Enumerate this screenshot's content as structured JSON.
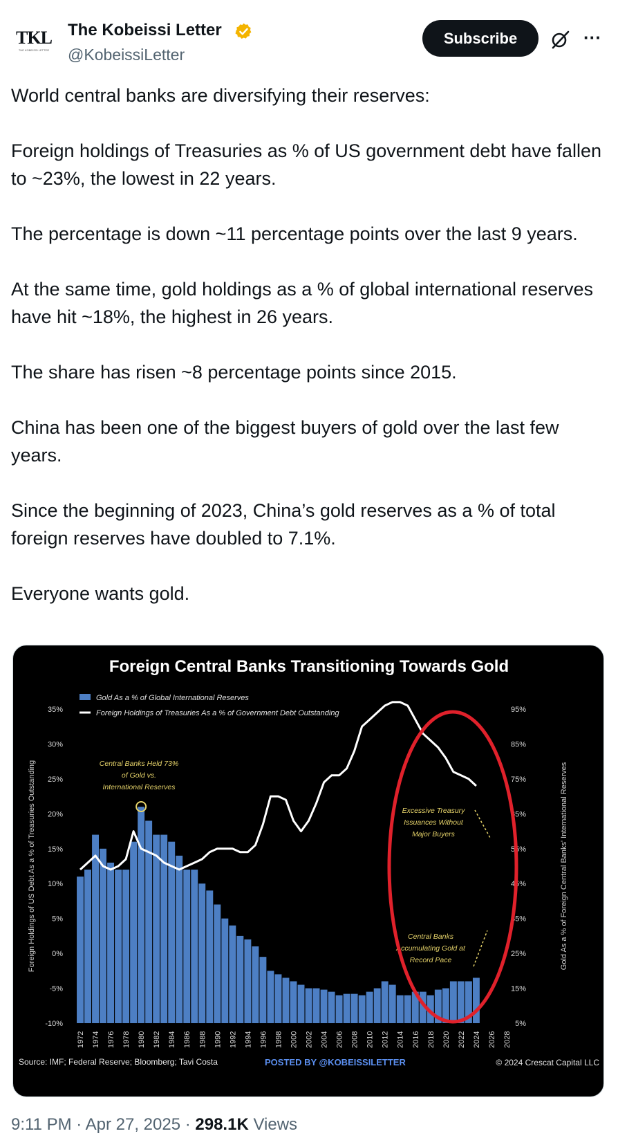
{
  "author": {
    "name": "The Kobeissi Letter",
    "handle": "@KobeissiLetter",
    "avatar_text": "TKL",
    "avatar_subtext": "THE KOBEISSI LETTER",
    "verified_badge": "verified-gold-badge-icon",
    "badge_color": "#f4b400"
  },
  "actions": {
    "subscribe_label": "Subscribe",
    "grok_icon": "grok-icon",
    "more_icon": "more-icon",
    "more_glyph": "···"
  },
  "tweet": {
    "paragraphs": [
      "World central banks are diversifying their reserves:",
      "Foreign holdings of Treasuries as % of US government debt have fallen to ~23%, the lowest in 22 years.",
      "The percentage is down ~11 percentage points over the last 9 years.",
      "At the same time, gold holdings as a % of global international reserves have hit ~18%, the highest in 26 years.",
      "The share has risen ~8 percentage points since 2015.",
      "China has been one of the biggest buyers of gold over the last few years.",
      "Since the beginning of 2023, China’s gold reserves as a % of total foreign reserves have doubled to 7.1%.",
      "Everyone wants gold."
    ]
  },
  "footer": {
    "time": "9:11 PM",
    "separator": " · ",
    "date": "Apr 27, 2025",
    "views_count": "298.1K",
    "views_label": " Views"
  },
  "chart_data": {
    "type": "bar",
    "title": "Foreign Central Banks Transitioning Towards Gold",
    "legend": [
      {
        "name": "Gold As a % of Global International Reserves",
        "kind": "bar",
        "color": "#4d7fc4"
      },
      {
        "name": "Foreign Holdings of Treasuries As a % of Government Debt Outstanding",
        "kind": "line",
        "color": "#ffffff"
      }
    ],
    "legend_position": "top-left",
    "ylabel_left": "Foreign Holdings of US Debt As a % of Treasuries Outstanding",
    "ylabel_right": "Gold As a % of Foreign Central Banks' International Reserves",
    "yticks_left": [
      "35%",
      "30%",
      "25%",
      "20%",
      "15%",
      "10%",
      "5%",
      "0%",
      "-5%",
      "-10%"
    ],
    "yticks_right": [
      "95%",
      "85%",
      "75%",
      "65%",
      "55%",
      "45%",
      "35%",
      "25%",
      "15%",
      "5%"
    ],
    "ylim_left": [
      -10,
      35
    ],
    "ylim_right": [
      5,
      95
    ],
    "xticks": [
      "1972",
      "1974",
      "1976",
      "1978",
      "1980",
      "1982",
      "1984",
      "1986",
      "1988",
      "1990",
      "1992",
      "1994",
      "1996",
      "1998",
      "2000",
      "2002",
      "2004",
      "2006",
      "2008",
      "2010",
      "2012",
      "2014",
      "2016",
      "2018",
      "2020",
      "2022",
      "2024",
      "2026",
      "2028"
    ],
    "xlim": [
      1972,
      2029
    ],
    "gold_pct": {
      "axis": "left",
      "x": [
        1972,
        1973,
        1974,
        1975,
        1976,
        1977,
        1978,
        1979,
        1980,
        1981,
        1982,
        1983,
        1984,
        1985,
        1986,
        1987,
        1988,
        1989,
        1990,
        1991,
        1992,
        1993,
        1994,
        1995,
        1996,
        1997,
        1998,
        1999,
        2000,
        2001,
        2002,
        2003,
        2004,
        2005,
        2006,
        2007,
        2008,
        2009,
        2010,
        2011,
        2012,
        2013,
        2014,
        2015,
        2016,
        2017,
        2018,
        2019,
        2020,
        2021,
        2022,
        2023,
        2024
      ],
      "values": [
        11,
        12,
        17,
        15,
        13,
        12,
        12,
        16,
        21,
        19,
        17,
        17,
        16,
        14,
        12,
        12,
        10,
        9,
        7,
        5,
        4,
        2.5,
        2,
        1,
        -0.5,
        -2.5,
        -3,
        -3.5,
        -4,
        -4.5,
        -5,
        -5,
        -5.2,
        -5.5,
        -6,
        -5.8,
        -5.8,
        -6,
        -5.5,
        -5,
        -4,
        -4.5,
        -6,
        -6,
        -5.5,
        -5.5,
        -6,
        -5.2,
        -5,
        -4,
        -4,
        -4,
        -3.5
      ]
    },
    "treasury_pct": {
      "axis": "right",
      "x": [
        1972,
        1973,
        1974,
        1975,
        1976,
        1977,
        1978,
        1979,
        1980,
        1981,
        1982,
        1983,
        1984,
        1985,
        1986,
        1987,
        1988,
        1989,
        1990,
        1991,
        1992,
        1993,
        1994,
        1995,
        1996,
        1997,
        1998,
        1999,
        2000,
        2001,
        2002,
        2003,
        2004,
        2005,
        2006,
        2007,
        2008,
        2009,
        2010,
        2011,
        2012,
        2013,
        2014,
        2015,
        2016,
        2017,
        2018,
        2019,
        2020,
        2021,
        2022,
        2023,
        2024
      ],
      "values": [
        49,
        51,
        53,
        50,
        49,
        50,
        52,
        60,
        55,
        54,
        53,
        51,
        50,
        49,
        50,
        51,
        52,
        54,
        55,
        55,
        55,
        54,
        54,
        56,
        62,
        70,
        70,
        69,
        63,
        60,
        63,
        68,
        74,
        76,
        76,
        78,
        83,
        90,
        92,
        94,
        96,
        97,
        97,
        96,
        92,
        88,
        86,
        84,
        81,
        77,
        76,
        75,
        73
      ]
    },
    "annotations": [
      "Central Banks Held 73% of Gold vs. International Reserves",
      "Excessive Treasury Issuances Without Major Buyers",
      "Central Banks Accumulating Gold at Record Pace"
    ],
    "source": "Source: IMF; Federal Reserve; Bloomberg; Tavi Costa",
    "posted_by": "POSTED BY @KOBEISSILETTER",
    "copyright": "© 2024 Crescat Capital LLC"
  }
}
